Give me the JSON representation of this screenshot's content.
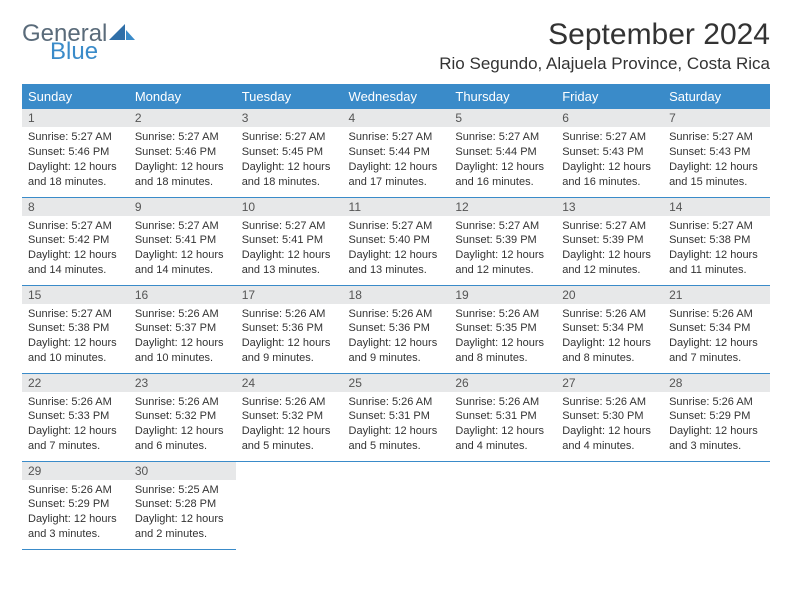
{
  "logo": {
    "text1": "General",
    "text2": "Blue"
  },
  "title": "September 2024",
  "location": "Rio Segundo, Alajuela Province, Costa Rica",
  "colors": {
    "header_bg": "#3a8bc9",
    "header_fg": "#ffffff",
    "daynum_bg": "#e7e8e9",
    "border": "#3a8bc9",
    "text": "#333333",
    "logo_gray": "#5a6b7a",
    "logo_blue": "#3a8bc9"
  },
  "typography": {
    "title_fontsize": 30,
    "location_fontsize": 17,
    "weekday_fontsize": 13,
    "daynum_fontsize": 12,
    "body_fontsize": 11
  },
  "weekdays": [
    "Sunday",
    "Monday",
    "Tuesday",
    "Wednesday",
    "Thursday",
    "Friday",
    "Saturday"
  ],
  "weeks": [
    [
      {
        "n": "1",
        "sr": "5:27 AM",
        "ss": "5:46 PM",
        "dl": "12 hours and 18 minutes."
      },
      {
        "n": "2",
        "sr": "5:27 AM",
        "ss": "5:46 PM",
        "dl": "12 hours and 18 minutes."
      },
      {
        "n": "3",
        "sr": "5:27 AM",
        "ss": "5:45 PM",
        "dl": "12 hours and 18 minutes."
      },
      {
        "n": "4",
        "sr": "5:27 AM",
        "ss": "5:44 PM",
        "dl": "12 hours and 17 minutes."
      },
      {
        "n": "5",
        "sr": "5:27 AM",
        "ss": "5:44 PM",
        "dl": "12 hours and 16 minutes."
      },
      {
        "n": "6",
        "sr": "5:27 AM",
        "ss": "5:43 PM",
        "dl": "12 hours and 16 minutes."
      },
      {
        "n": "7",
        "sr": "5:27 AM",
        "ss": "5:43 PM",
        "dl": "12 hours and 15 minutes."
      }
    ],
    [
      {
        "n": "8",
        "sr": "5:27 AM",
        "ss": "5:42 PM",
        "dl": "12 hours and 14 minutes."
      },
      {
        "n": "9",
        "sr": "5:27 AM",
        "ss": "5:41 PM",
        "dl": "12 hours and 14 minutes."
      },
      {
        "n": "10",
        "sr": "5:27 AM",
        "ss": "5:41 PM",
        "dl": "12 hours and 13 minutes."
      },
      {
        "n": "11",
        "sr": "5:27 AM",
        "ss": "5:40 PM",
        "dl": "12 hours and 13 minutes."
      },
      {
        "n": "12",
        "sr": "5:27 AM",
        "ss": "5:39 PM",
        "dl": "12 hours and 12 minutes."
      },
      {
        "n": "13",
        "sr": "5:27 AM",
        "ss": "5:39 PM",
        "dl": "12 hours and 12 minutes."
      },
      {
        "n": "14",
        "sr": "5:27 AM",
        "ss": "5:38 PM",
        "dl": "12 hours and 11 minutes."
      }
    ],
    [
      {
        "n": "15",
        "sr": "5:27 AM",
        "ss": "5:38 PM",
        "dl": "12 hours and 10 minutes."
      },
      {
        "n": "16",
        "sr": "5:26 AM",
        "ss": "5:37 PM",
        "dl": "12 hours and 10 minutes."
      },
      {
        "n": "17",
        "sr": "5:26 AM",
        "ss": "5:36 PM",
        "dl": "12 hours and 9 minutes."
      },
      {
        "n": "18",
        "sr": "5:26 AM",
        "ss": "5:36 PM",
        "dl": "12 hours and 9 minutes."
      },
      {
        "n": "19",
        "sr": "5:26 AM",
        "ss": "5:35 PM",
        "dl": "12 hours and 8 minutes."
      },
      {
        "n": "20",
        "sr": "5:26 AM",
        "ss": "5:34 PM",
        "dl": "12 hours and 8 minutes."
      },
      {
        "n": "21",
        "sr": "5:26 AM",
        "ss": "5:34 PM",
        "dl": "12 hours and 7 minutes."
      }
    ],
    [
      {
        "n": "22",
        "sr": "5:26 AM",
        "ss": "5:33 PM",
        "dl": "12 hours and 7 minutes."
      },
      {
        "n": "23",
        "sr": "5:26 AM",
        "ss": "5:32 PM",
        "dl": "12 hours and 6 minutes."
      },
      {
        "n": "24",
        "sr": "5:26 AM",
        "ss": "5:32 PM",
        "dl": "12 hours and 5 minutes."
      },
      {
        "n": "25",
        "sr": "5:26 AM",
        "ss": "5:31 PM",
        "dl": "12 hours and 5 minutes."
      },
      {
        "n": "26",
        "sr": "5:26 AM",
        "ss": "5:31 PM",
        "dl": "12 hours and 4 minutes."
      },
      {
        "n": "27",
        "sr": "5:26 AM",
        "ss": "5:30 PM",
        "dl": "12 hours and 4 minutes."
      },
      {
        "n": "28",
        "sr": "5:26 AM",
        "ss": "5:29 PM",
        "dl": "12 hours and 3 minutes."
      }
    ],
    [
      {
        "n": "29",
        "sr": "5:26 AM",
        "ss": "5:29 PM",
        "dl": "12 hours and 3 minutes."
      },
      {
        "n": "30",
        "sr": "5:25 AM",
        "ss": "5:28 PM",
        "dl": "12 hours and 2 minutes."
      },
      null,
      null,
      null,
      null,
      null
    ]
  ],
  "labels": {
    "sunrise": "Sunrise: ",
    "sunset": "Sunset: ",
    "daylight": "Daylight: "
  }
}
